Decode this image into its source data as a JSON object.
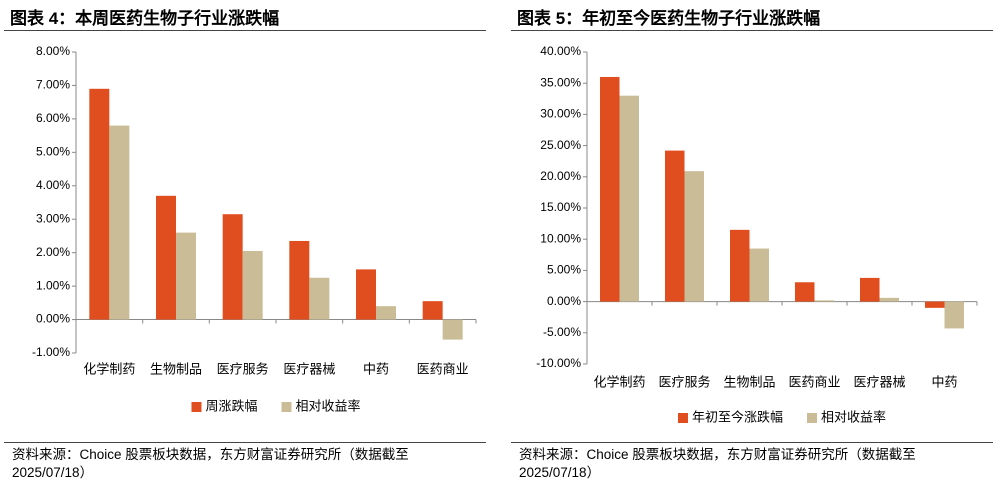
{
  "chart_data": [
    {
      "type": "bar",
      "title": "图表 4：本周医药生物子行业涨跌幅",
      "categories": [
        "化学制药",
        "生物制品",
        "医疗服务",
        "医疗器械",
        "中药",
        "医药商业"
      ],
      "series": [
        {
          "name": "周涨跌幅",
          "color": "#e04e1f",
          "values": [
            6.9,
            3.7,
            3.15,
            2.35,
            1.5,
            0.55
          ]
        },
        {
          "name": "相对收益率",
          "color": "#c9bc96",
          "values": [
            5.8,
            2.6,
            2.05,
            1.25,
            0.4,
            -0.6
          ]
        }
      ],
      "ylim": [
        -1,
        8
      ],
      "yticks": [
        {
          "value": -1,
          "label": "-1.00%"
        },
        {
          "value": 0,
          "label": "0.00%"
        },
        {
          "value": 1,
          "label": "1.00%"
        },
        {
          "value": 2,
          "label": "2.00%"
        },
        {
          "value": 3,
          "label": "3.00%"
        },
        {
          "value": 4,
          "label": "4.00%"
        },
        {
          "value": 5,
          "label": "5.00%"
        },
        {
          "value": 6,
          "label": "6.00%"
        },
        {
          "value": 7,
          "label": "7.00%"
        },
        {
          "value": 8,
          "label": "8.00%"
        }
      ],
      "source": "资料来源：Choice 股票板块数据，东方财富证券研究所（数据截至 2025/07/18）"
    },
    {
      "type": "bar",
      "title": "图表 5：年初至今医药生物子行业涨跌幅",
      "categories": [
        "化学制药",
        "医疗服务",
        "生物制品",
        "医药商业",
        "医疗器械",
        "中药"
      ],
      "series": [
        {
          "name": "年初至今涨跌幅",
          "color": "#e04e1f",
          "values": [
            36,
            24.2,
            11.5,
            3.1,
            3.8,
            -1.0
          ]
        },
        {
          "name": "相对收益率",
          "color": "#c9bc96",
          "values": [
            33,
            20.9,
            8.5,
            0.2,
            0.6,
            -4.3
          ]
        }
      ],
      "ylim": [
        -10,
        40
      ],
      "yticks": [
        {
          "value": -10,
          "label": "-10.00%"
        },
        {
          "value": -5,
          "label": "-5.00%"
        },
        {
          "value": 0,
          "label": "0.00%"
        },
        {
          "value": 5,
          "label": "5.00%"
        },
        {
          "value": 10,
          "label": "10.00%"
        },
        {
          "value": 15,
          "label": "15.00%"
        },
        {
          "value": 20,
          "label": "20.00%"
        },
        {
          "value": 25,
          "label": "25.00%"
        },
        {
          "value": 30,
          "label": "30.00%"
        },
        {
          "value": 35,
          "label": "35.00%"
        },
        {
          "value": 40,
          "label": "40.00%"
        }
      ],
      "source": "资料来源：Choice 股票板块数据，东方财富证券研究所（数据截至 2025/07/18）"
    }
  ]
}
